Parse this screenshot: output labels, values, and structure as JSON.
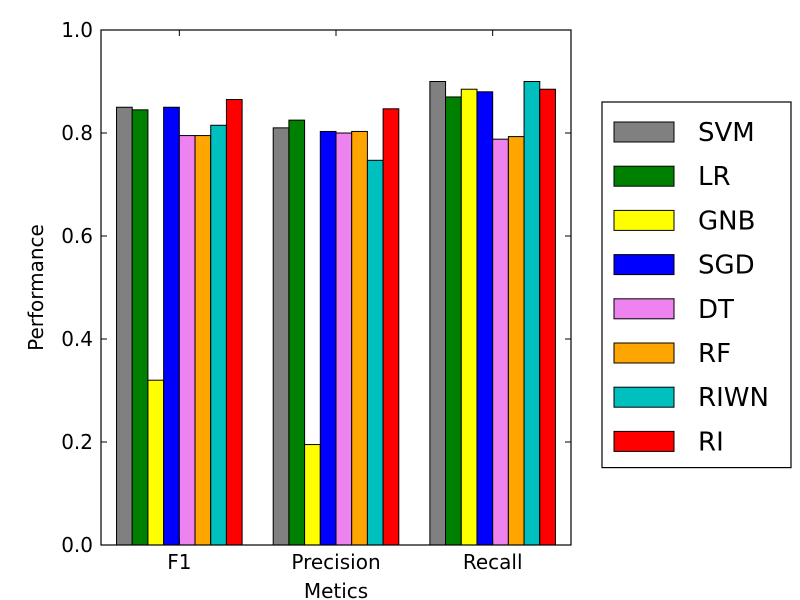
{
  "chart_data": {
    "type": "bar",
    "xlabel": "Metics",
    "ylabel": "Performance",
    "ylim": [
      0.0,
      1.0
    ],
    "y_ticks": [
      "0.0",
      "0.2",
      "0.4",
      "0.6",
      "0.8",
      "1.0"
    ],
    "categories": [
      "F1",
      "Precision",
      "Recall"
    ],
    "grid": false,
    "legend_position": "right",
    "series": [
      {
        "name": "SVM",
        "color": "#808080",
        "values": [
          0.85,
          0.81,
          0.9
        ]
      },
      {
        "name": "LR",
        "color": "#008000",
        "values": [
          0.845,
          0.825,
          0.87
        ]
      },
      {
        "name": "GNB",
        "color": "#ffff00",
        "values": [
          0.32,
          0.195,
          0.885
        ]
      },
      {
        "name": "SGD",
        "color": "#0000ff",
        "values": [
          0.85,
          0.803,
          0.88
        ]
      },
      {
        "name": "DT",
        "color": "#ee82ee",
        "values": [
          0.795,
          0.8,
          0.788
        ]
      },
      {
        "name": "RF",
        "color": "#ffa500",
        "values": [
          0.795,
          0.803,
          0.793
        ]
      },
      {
        "name": "RIWN",
        "color": "#00bfbf",
        "values": [
          0.815,
          0.747,
          0.9
        ]
      },
      {
        "name": "RI",
        "color": "#ff0000",
        "values": [
          0.865,
          0.847,
          0.885
        ]
      }
    ]
  }
}
